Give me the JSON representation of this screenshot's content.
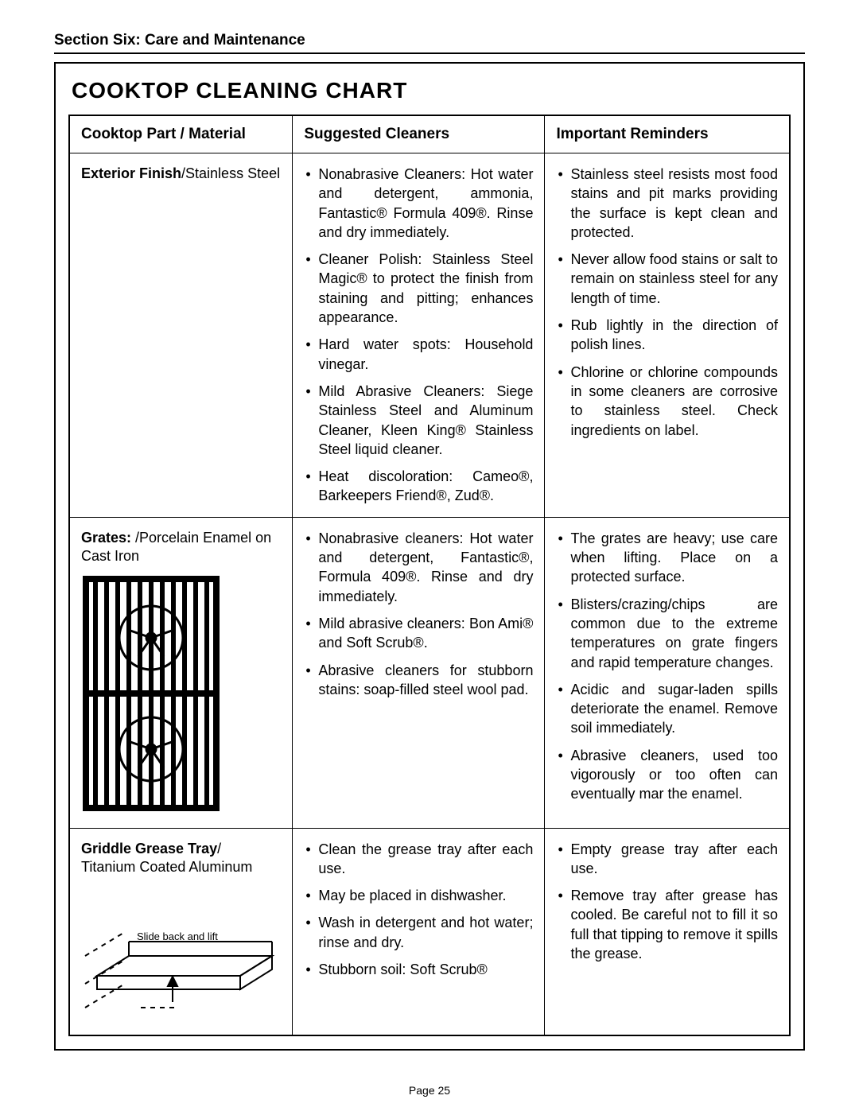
{
  "section_header": "Section Six: Care and Maintenance",
  "title": "COOKTOP CLEANING CHART",
  "columns": {
    "c1": "Cooktop Part / Material",
    "c2": "Suggested Cleaners",
    "c3": "Important Reminders"
  },
  "rows": [
    {
      "part_bold": "Exterior Finish",
      "part_rest": "/Stainless Steel",
      "illustration": "none",
      "cleaners": [
        "Nonabrasive Cleaners: Hot water and detergent, ammonia, Fantastic® Formula 409®. Rinse and dry immediately.",
        "Cleaner Polish: Stainless Steel Magic® to protect the finish from staining and pitting; enhances appearance.",
        "Hard water spots: Household vinegar.",
        "Mild Abrasive Cleaners: Siege Stainless Steel and Aluminum Cleaner, Kleen King® Stainless Steel liquid cleaner.",
        "Heat discoloration: Cameo®, Barkeepers Friend®, Zud®."
      ],
      "reminders": [
        "Stainless steel resists most food stains and pit marks providing the surface is kept clean and protected.",
        "Never allow food stains or salt to remain on stainless steel for any length of time.",
        "Rub lightly in the direction of polish lines.",
        "Chlorine or chlorine compounds in some cleaners are corrosive to stainless steel. Check ingredients on label."
      ]
    },
    {
      "part_bold": "Grates:",
      "part_rest": " /Porcelain Enamel on Cast Iron",
      "illustration": "grates",
      "cleaners": [
        "Nonabrasive cleaners: Hot water and detergent, Fantastic®, Formula 409®. Rinse and dry immediately.",
        "Mild abrasive cleaners: Bon Ami® and Soft Scrub®.",
        "Abrasive cleaners for stubborn stains: soap-filled steel wool pad."
      ],
      "reminders": [
        "The grates are heavy; use care when lifting. Place on a protected surface.",
        "Blisters/crazing/chips are common due to the extreme temperatures on grate fingers and rapid temperature changes.",
        "Acidic and sugar-laden spills deteriorate the enamel. Remove soil immediately.",
        "Abrasive cleaners, used too vigorously or too often can eventually mar the enamel."
      ]
    },
    {
      "part_bold": "Griddle Grease Tray",
      "part_rest": "/\nTitanium Coated Aluminum",
      "illustration": "tray",
      "tray_label": "Slide back and lift",
      "cleaners": [
        "Clean the grease tray after each use.",
        "May be placed in dishwasher.",
        "Wash in detergent and hot water; rinse and dry.",
        "Stubborn soil: Soft Scrub®"
      ],
      "reminders": [
        "Empty grease tray after each use.",
        "Remove tray after grease has cooled. Be careful not to fill it so full that tipping to remove it spills the grease."
      ]
    }
  ],
  "page_label": "Page 25",
  "colors": {
    "text": "#000000",
    "bg": "#ffffff",
    "border": "#000000"
  }
}
